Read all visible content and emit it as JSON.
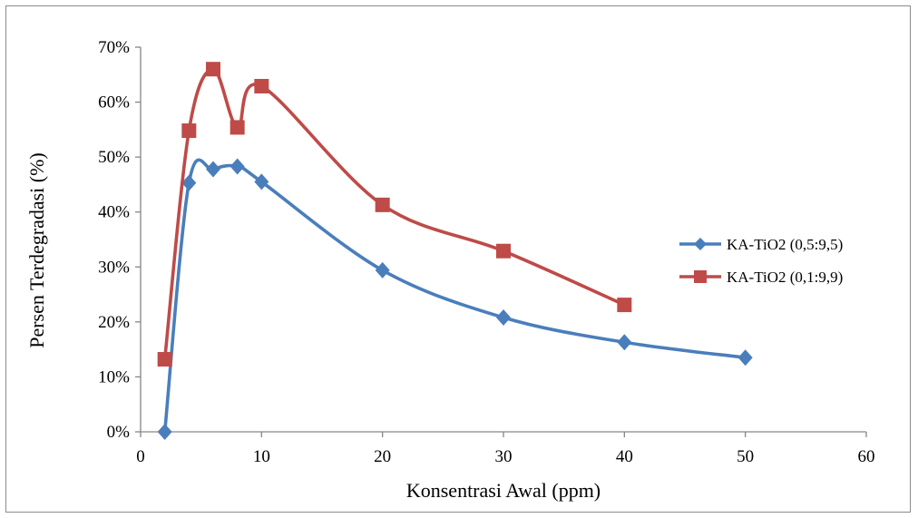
{
  "chart_data": {
    "type": "line",
    "title": "",
    "xlabel": "Konsentrasi Awal (ppm)",
    "ylabel": "Persen Terdegradasi (%)",
    "xlim": [
      0,
      60
    ],
    "ylim": [
      0,
      70
    ],
    "x_ticks": [
      "0",
      "10",
      "20",
      "30",
      "40",
      "50",
      "60"
    ],
    "y_ticks": [
      "0%",
      "10%",
      "20%",
      "30%",
      "40%",
      "50%",
      "60%",
      "70%"
    ],
    "grid": false,
    "legend_position": "right",
    "series": [
      {
        "name": "KA-TiO2 (0,5:9,5)",
        "color": "#4a7ebb",
        "marker": "diamond",
        "x": [
          2,
          4,
          6,
          8,
          10,
          20,
          30,
          40,
          50
        ],
        "y": [
          0,
          45.3,
          47.8,
          48.3,
          45.5,
          29.4,
          20.8,
          16.3,
          13.5
        ]
      },
      {
        "name": "KA-TiO2 (0,1:9,9)",
        "color": "#be4b48",
        "marker": "square",
        "x": [
          2,
          4,
          6,
          8,
          10,
          20,
          30,
          40
        ],
        "y": [
          13.2,
          54.8,
          66.0,
          55.4,
          62.9,
          41.3,
          32.9,
          23.1
        ]
      }
    ]
  }
}
